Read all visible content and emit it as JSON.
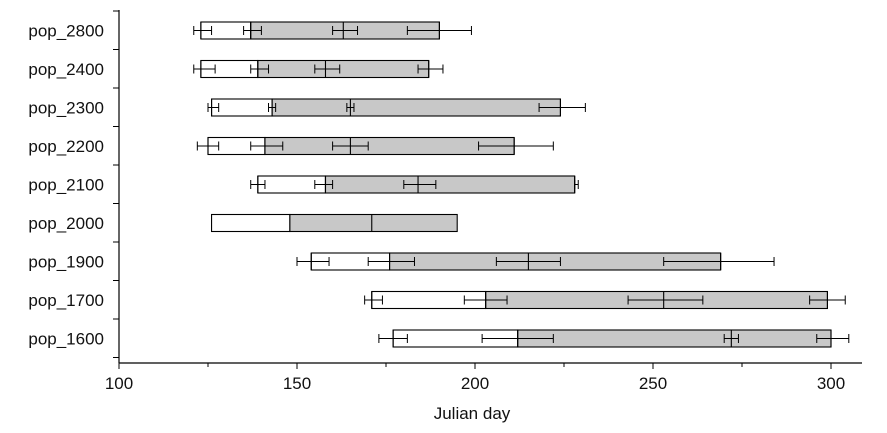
{
  "chart_data": {
    "type": "bar",
    "subtype": "horizontal-floating-bar",
    "title": "",
    "xlabel": "Julian day",
    "ylabel": "",
    "xlim": [
      100,
      310
    ],
    "xticks": [
      100,
      150,
      200,
      250,
      300
    ],
    "grid": false,
    "legend": "none",
    "colors": {
      "phase1": "#ffffff",
      "phase2": "#c8c8c8",
      "stroke": "#000000"
    },
    "categories": [
      "pop_2800",
      "pop_2400",
      "pop_2300",
      "pop_2200",
      "pop_2100",
      "pop_2000",
      "pop_1900",
      "pop_1700",
      "pop_1600"
    ],
    "rows": [
      {
        "category": "pop_2800",
        "start": 123,
        "mid": 137,
        "end": 190,
        "markers": [
          {
            "v": 123,
            "err": [
              121,
              126
            ]
          },
          {
            "v": 137,
            "err": [
              135,
              140
            ]
          },
          {
            "v": 163,
            "err": [
              160,
              167
            ]
          },
          {
            "v": 190,
            "err": [
              181,
              199
            ]
          }
        ]
      },
      {
        "category": "pop_2400",
        "start": 123,
        "mid": 139,
        "end": 187,
        "markers": [
          {
            "v": 123,
            "err": [
              121,
              127
            ]
          },
          {
            "v": 139,
            "err": [
              137,
              142
            ]
          },
          {
            "v": 158,
            "err": [
              155,
              162
            ]
          },
          {
            "v": 187,
            "err": [
              184,
              191
            ]
          }
        ]
      },
      {
        "category": "pop_2300",
        "start": 126,
        "mid": 143,
        "end": 224,
        "markers": [
          {
            "v": 126,
            "err": [
              125,
              128
            ]
          },
          {
            "v": 143,
            "err": [
              142,
              144
            ]
          },
          {
            "v": 165,
            "err": [
              164,
              166
            ]
          },
          {
            "v": 224,
            "err": [
              218,
              231
            ]
          }
        ]
      },
      {
        "category": "pop_2200",
        "start": 125,
        "mid": 141,
        "end": 211,
        "markers": [
          {
            "v": 125,
            "err": [
              122,
              128
            ]
          },
          {
            "v": 141,
            "err": [
              137,
              146
            ]
          },
          {
            "v": 165,
            "err": [
              160,
              170
            ]
          },
          {
            "v": 211,
            "err": [
              201,
              222
            ]
          }
        ]
      },
      {
        "category": "pop_2100",
        "start": 139,
        "mid": 158,
        "end": 228,
        "markers": [
          {
            "v": 139,
            "err": [
              137,
              141
            ]
          },
          {
            "v": 158,
            "err": [
              155,
              160
            ]
          },
          {
            "v": 184,
            "err": [
              180,
              189
            ]
          },
          {
            "v": 228,
            "err": [
              228,
              229
            ]
          }
        ]
      },
      {
        "category": "pop_2000",
        "start": 126,
        "mid": 148,
        "end": 195,
        "markers": [
          {
            "v": 171,
            "err": null
          }
        ]
      },
      {
        "category": "pop_1900",
        "start": 154,
        "mid": 176,
        "end": 269,
        "markers": [
          {
            "v": 154,
            "err": [
              150,
              159
            ]
          },
          {
            "v": 176,
            "err": [
              170,
              183
            ]
          },
          {
            "v": 215,
            "err": [
              206,
              224
            ]
          },
          {
            "v": 269,
            "err": [
              253,
              284
            ]
          }
        ]
      },
      {
        "category": "pop_1700",
        "start": 171,
        "mid": 203,
        "end": 299,
        "markers": [
          {
            "v": 171,
            "err": [
              169,
              174
            ]
          },
          {
            "v": 203,
            "err": [
              197,
              209
            ]
          },
          {
            "v": 253,
            "err": [
              243,
              264
            ]
          },
          {
            "v": 299,
            "err": [
              294,
              304
            ]
          }
        ]
      },
      {
        "category": "pop_1600",
        "start": 177,
        "mid": 212,
        "end": 300,
        "markers": [
          {
            "v": 177,
            "err": [
              173,
              181
            ]
          },
          {
            "v": 212,
            "err": [
              202,
              222
            ]
          },
          {
            "v": 272,
            "err": [
              270,
              274
            ]
          },
          {
            "v": 300,
            "err": [
              296,
              305
            ]
          }
        ]
      }
    ]
  }
}
